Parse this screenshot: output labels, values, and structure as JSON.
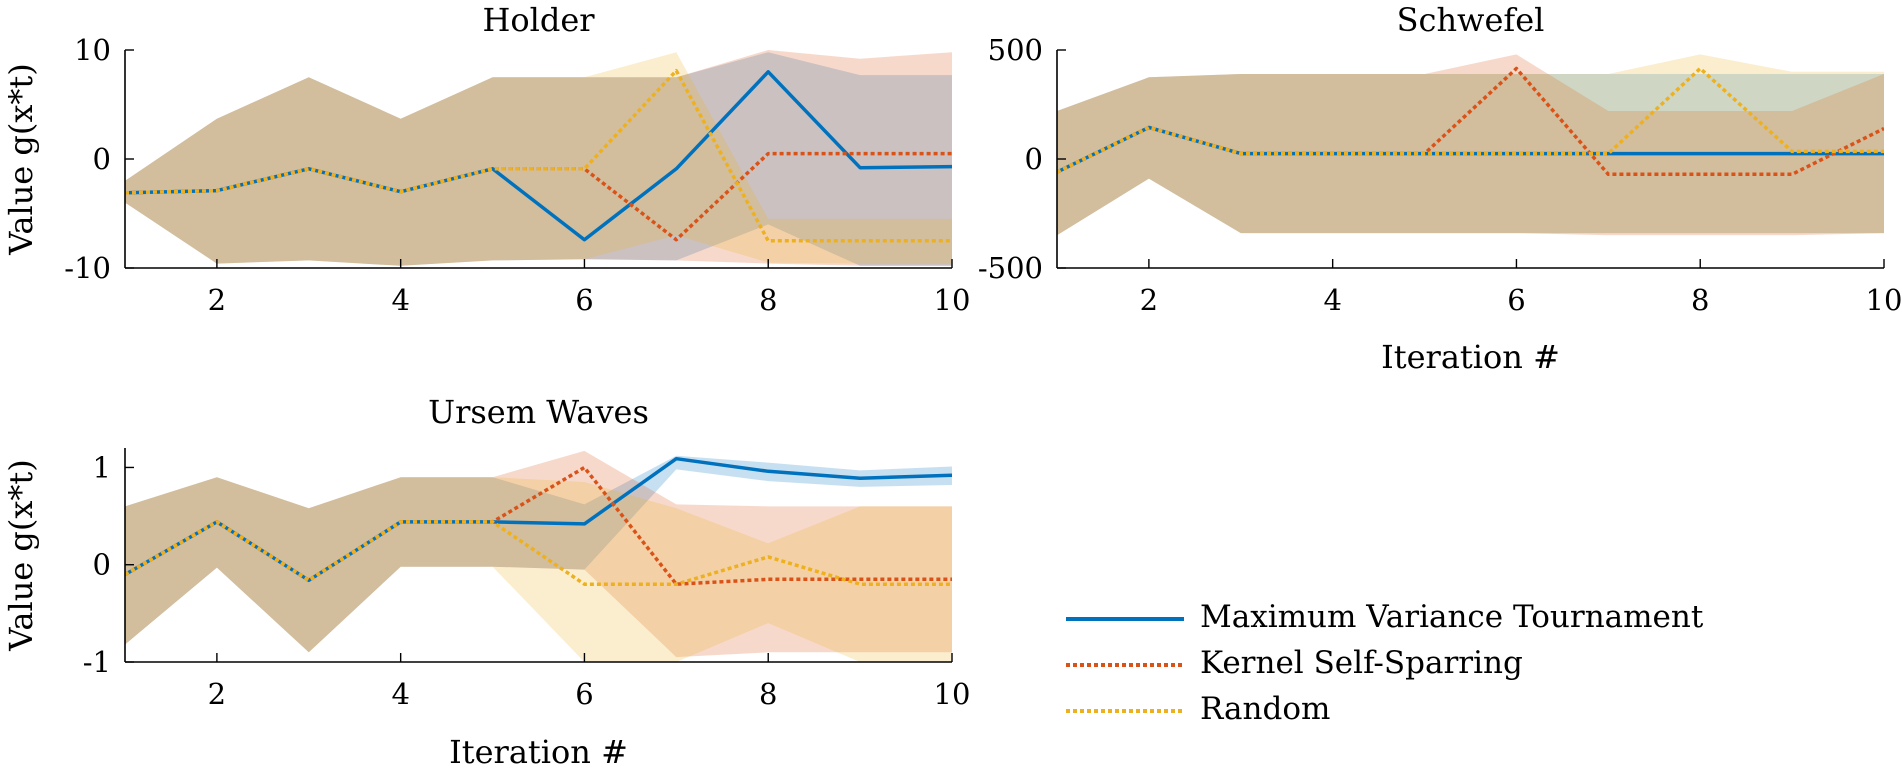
{
  "chart_data": [
    {
      "type": "line",
      "title": "Holder",
      "xlabel": "",
      "ylabel": "Value g(x*t)",
      "xlim": [
        1,
        10
      ],
      "ylim": [
        -10,
        10
      ],
      "xticks": [
        2,
        4,
        6,
        8,
        10
      ],
      "yticks": [
        -10,
        0,
        10
      ],
      "x": [
        1,
        2,
        3,
        4,
        5,
        6,
        7,
        8,
        9,
        10
      ],
      "series": [
        {
          "name": "Maximum Variance Tournament",
          "color": "#0072BD",
          "style": "solid",
          "values": [
            -3.1,
            -2.9,
            -0.9,
            -3.0,
            -0.9,
            -7.4,
            -0.9,
            8.0,
            -0.8,
            -0.7
          ],
          "lower": [
            -4.0,
            -9.6,
            -9.3,
            -9.8,
            -9.3,
            -9.2,
            -9.3,
            -6.0,
            -9.8,
            -9.8
          ],
          "upper": [
            -2.0,
            3.7,
            7.5,
            3.7,
            7.5,
            7.5,
            7.5,
            9.8,
            7.7,
            7.7
          ]
        },
        {
          "name": "Kernel Self-Sparring",
          "color": "#D95319",
          "style": "dotted",
          "values": [
            -3.1,
            -2.9,
            -0.9,
            -3.0,
            -0.9,
            -0.9,
            -7.4,
            0.5,
            0.5,
            0.5
          ],
          "lower": [
            -4.0,
            -9.6,
            -9.3,
            -9.8,
            -9.3,
            -9.2,
            -9.3,
            -9.6,
            -9.8,
            -9.8
          ],
          "upper": [
            -2.0,
            3.7,
            7.5,
            3.7,
            7.5,
            7.5,
            7.5,
            10.0,
            9.2,
            9.8
          ]
        },
        {
          "name": "Random",
          "color": "#EDB120",
          "style": "dotted",
          "values": [
            -3.1,
            -2.9,
            -0.9,
            -3.0,
            -0.9,
            -0.9,
            8.1,
            -7.5,
            -7.5,
            -7.5
          ],
          "lower": [
            -4.0,
            -9.6,
            -9.3,
            -9.8,
            -9.3,
            -9.2,
            -7.0,
            -9.5,
            -9.6,
            -9.6
          ],
          "upper": [
            -2.0,
            3.7,
            7.5,
            3.7,
            7.5,
            7.5,
            9.8,
            -5.5,
            -5.5,
            -5.5
          ]
        }
      ]
    },
    {
      "type": "line",
      "title": "Schwefel",
      "xlabel": "Iteration #",
      "ylabel": "",
      "xlim": [
        1,
        10
      ],
      "ylim": [
        -500,
        500
      ],
      "xticks": [
        2,
        4,
        6,
        8,
        10
      ],
      "yticks": [
        -500,
        0,
        500
      ],
      "x": [
        1,
        2,
        3,
        4,
        5,
        6,
        7,
        8,
        9,
        10
      ],
      "series": [
        {
          "name": "Maximum Variance Tournament",
          "color": "#0072BD",
          "style": "solid",
          "values": [
            -60,
            145,
            25,
            25,
            25,
            25,
            25,
            25,
            25,
            25
          ],
          "lower": [
            -350,
            -90,
            -340,
            -340,
            -340,
            -340,
            -340,
            -340,
            -340,
            -340
          ],
          "upper": [
            220,
            375,
            390,
            390,
            390,
            390,
            390,
            390,
            390,
            390
          ]
        },
        {
          "name": "Kernel Self-Sparring",
          "color": "#D95319",
          "style": "dotted",
          "values": [
            -60,
            145,
            25,
            25,
            25,
            415,
            -70,
            -70,
            -70,
            140
          ],
          "lower": [
            -350,
            -90,
            -340,
            -340,
            -340,
            -340,
            -350,
            -350,
            -350,
            -340
          ],
          "upper": [
            220,
            375,
            390,
            390,
            390,
            480,
            220,
            220,
            220,
            390
          ]
        },
        {
          "name": "Random",
          "color": "#EDB120",
          "style": "dotted",
          "values": [
            -60,
            145,
            25,
            25,
            25,
            25,
            25,
            415,
            35,
            35
          ],
          "lower": [
            -350,
            -90,
            -340,
            -340,
            -340,
            -340,
            -340,
            -340,
            -340,
            -340
          ],
          "upper": [
            220,
            375,
            390,
            390,
            390,
            390,
            390,
            480,
            400,
            400
          ]
        }
      ]
    },
    {
      "type": "line",
      "title": "Ursem Waves",
      "xlabel": "Iteration #",
      "ylabel": "Value g(x*t)",
      "xlim": [
        1,
        10
      ],
      "ylim": [
        -1,
        1.2
      ],
      "xticks": [
        2,
        4,
        6,
        8,
        10
      ],
      "yticks": [
        -1,
        0,
        1
      ],
      "ytick_labels": [
        "-1",
        "0",
        "1"
      ],
      "x": [
        1,
        2,
        3,
        4,
        5,
        6,
        7,
        8,
        9,
        10
      ],
      "series": [
        {
          "name": "Maximum Variance Tournament",
          "color": "#0072BD",
          "style": "solid",
          "values": [
            -0.1,
            0.44,
            -0.16,
            0.44,
            0.44,
            0.42,
            1.09,
            0.96,
            0.89,
            0.92
          ],
          "lower": [
            -0.82,
            -0.03,
            -0.9,
            -0.02,
            -0.02,
            -0.05,
            0.98,
            0.86,
            0.8,
            0.82
          ],
          "upper": [
            0.6,
            0.9,
            0.58,
            0.9,
            0.9,
            0.62,
            1.12,
            1.05,
            0.97,
            1.01
          ]
        },
        {
          "name": "Kernel Self-Sparring",
          "color": "#D95319",
          "style": "dotted",
          "values": [
            -0.1,
            0.44,
            -0.16,
            0.44,
            0.44,
            1.0,
            -0.2,
            -0.15,
            -0.15,
            -0.15
          ],
          "lower": [
            -0.82,
            -0.03,
            -0.9,
            -0.02,
            -0.02,
            -0.05,
            -0.95,
            -0.9,
            -0.9,
            -0.9
          ],
          "upper": [
            0.6,
            0.9,
            0.58,
            0.9,
            0.9,
            1.17,
            0.62,
            0.6,
            0.6,
            0.6
          ]
        },
        {
          "name": "Random",
          "color": "#EDB120",
          "style": "dotted",
          "values": [
            -0.1,
            0.44,
            -0.16,
            0.44,
            0.44,
            -0.2,
            -0.2,
            0.08,
            -0.2,
            -0.2
          ],
          "lower": [
            -0.82,
            -0.03,
            -0.9,
            -0.02,
            -0.02,
            -1.0,
            -1.0,
            -0.6,
            -1.0,
            -1.0
          ],
          "upper": [
            0.6,
            0.9,
            0.58,
            0.9,
            0.9,
            0.85,
            0.58,
            0.22,
            0.6,
            0.6
          ]
        }
      ]
    }
  ],
  "legend": {
    "placement": "bottom-right",
    "items": [
      {
        "label": "Maximum Variance Tournament",
        "color": "#0072BD",
        "style": "solid"
      },
      {
        "label": "Kernel Self-Sparring",
        "color": "#D95319",
        "style": "dotted"
      },
      {
        "label": "Random",
        "color": "#EDB120",
        "style": "dotted"
      }
    ]
  }
}
